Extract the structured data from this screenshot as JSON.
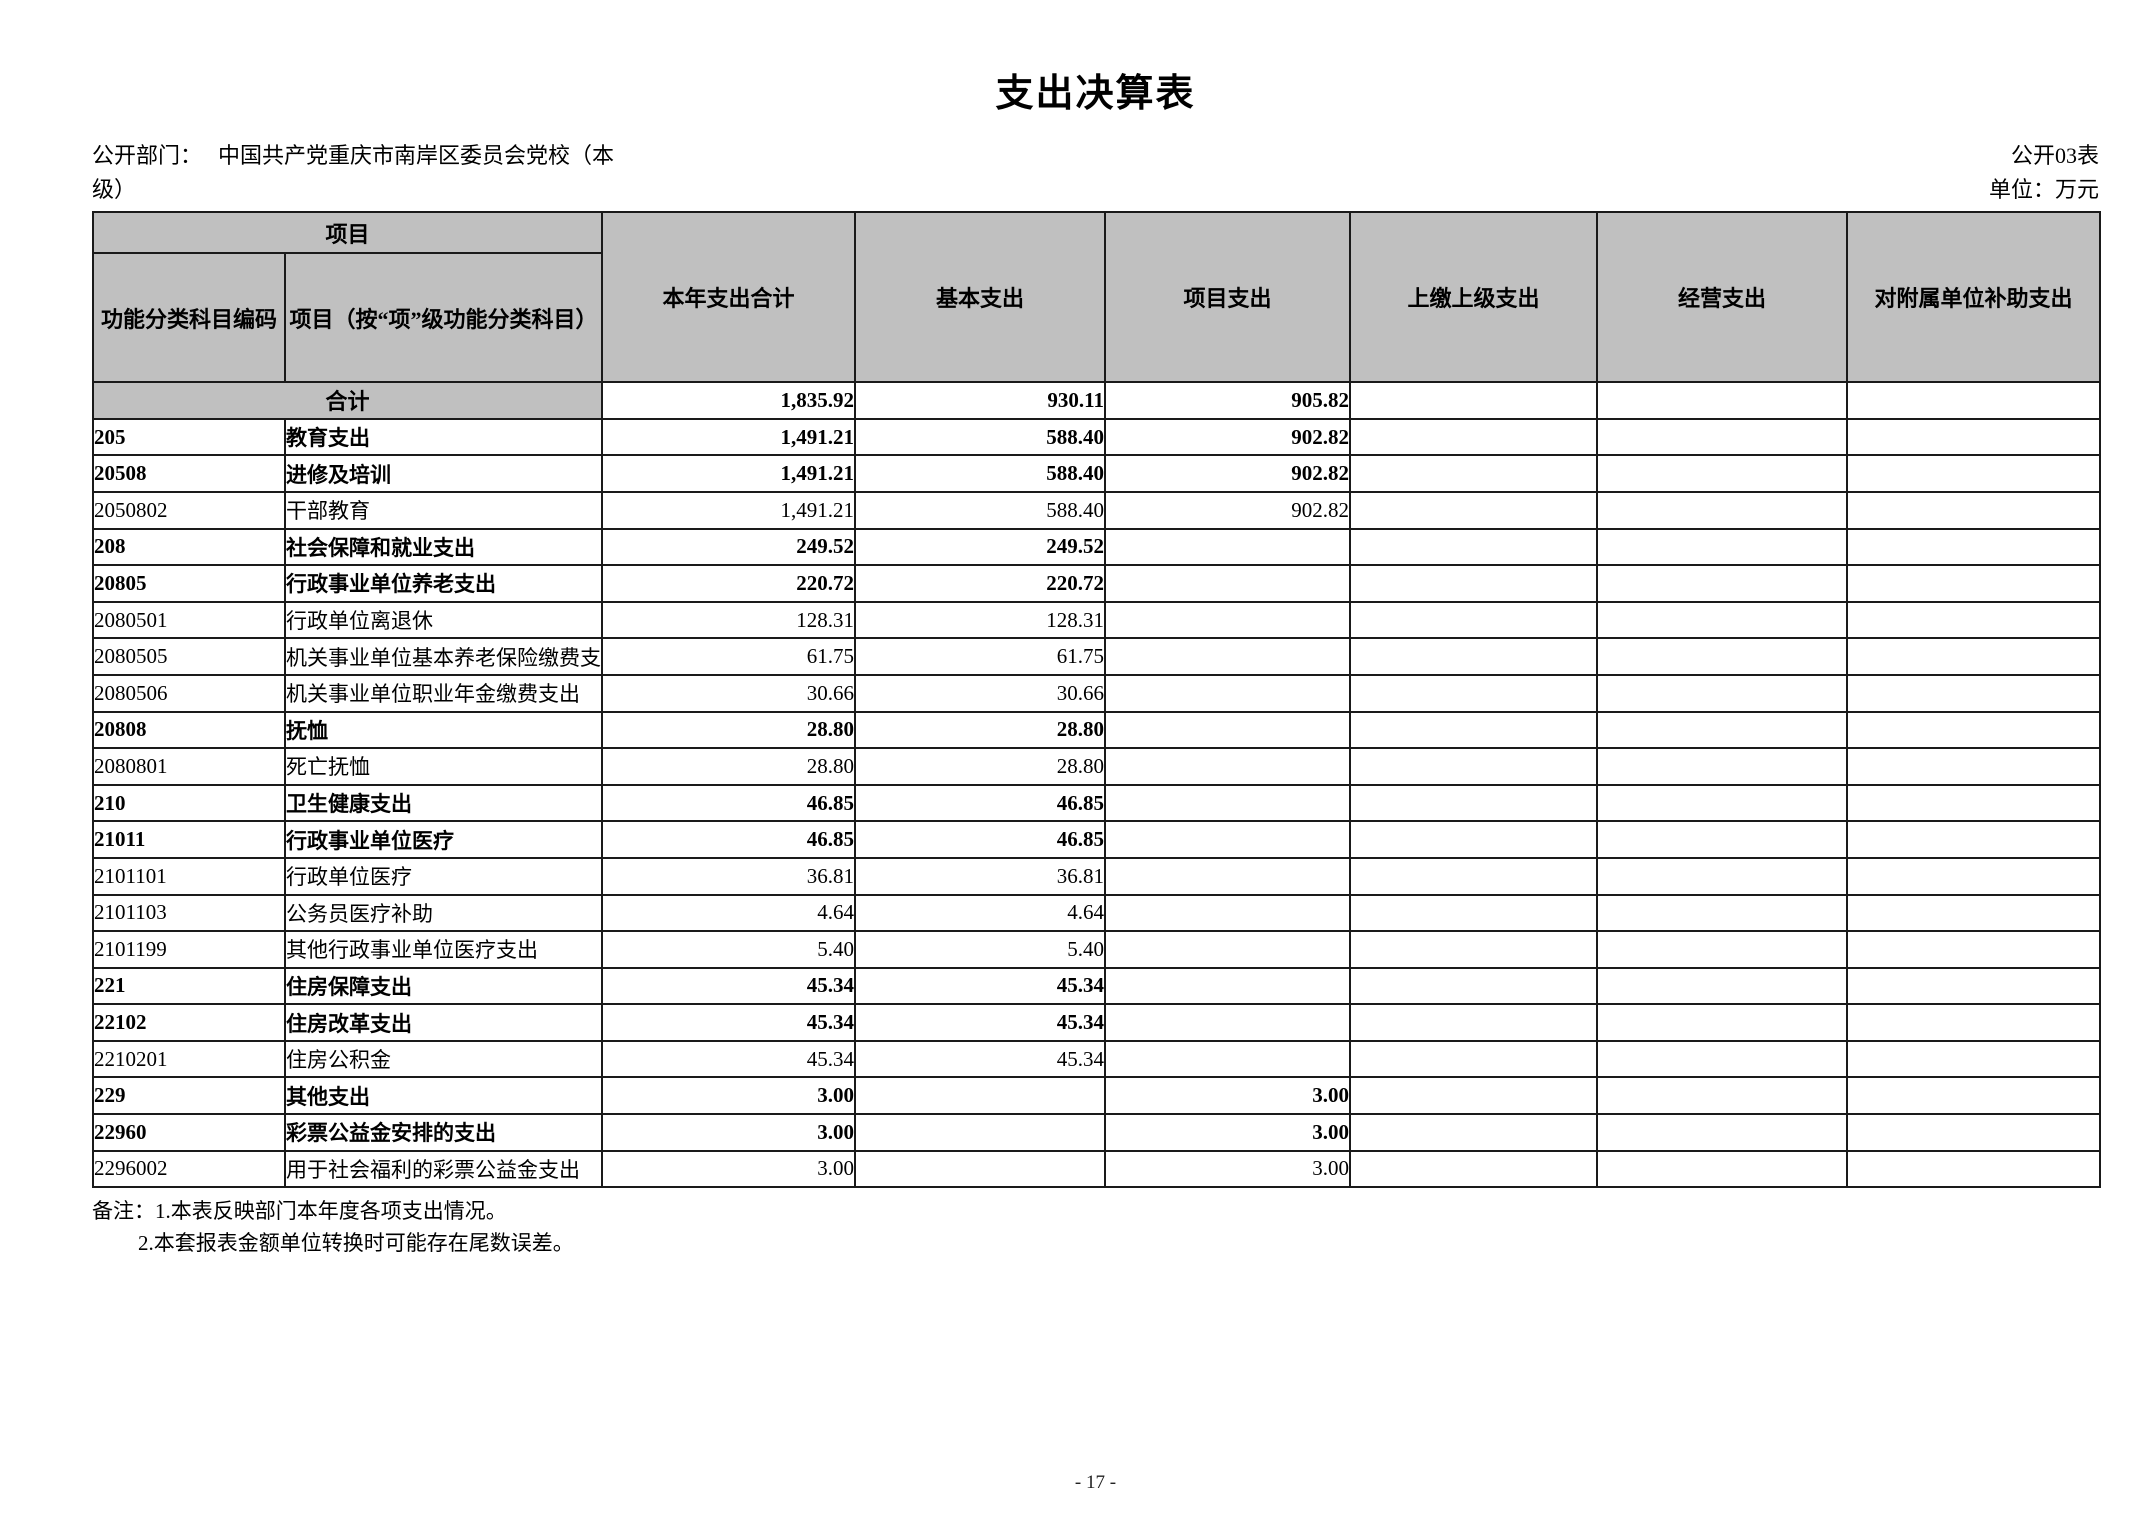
{
  "header": {
    "title": "支出决算表",
    "department_label": "公开部门：",
    "department_value": "中国共产党重庆市南岸区委员会党校（本级）",
    "table_code": "公开03表",
    "unit": "单位：万元"
  },
  "table": {
    "header": {
      "project_group": "项目",
      "code": "功能分类科目编码",
      "item": "项目（按“项”级功能分类科目）",
      "columns": [
        "本年支出合计",
        "基本支出",
        "项目支出",
        "上缴上级支出",
        "经营支出",
        "对附属单位补助支出"
      ]
    },
    "rows": [
      {
        "code": "",
        "name": "合计",
        "total": "1,835.92",
        "basic": "930.11",
        "project": "905.82",
        "upper": "",
        "operating": "",
        "subsidy": "",
        "bold": true,
        "is_total": true
      },
      {
        "code": "205",
        "name": "教育支出",
        "total": "1,491.21",
        "basic": "588.40",
        "project": "902.82",
        "upper": "",
        "operating": "",
        "subsidy": "",
        "bold": true
      },
      {
        "code": "20508",
        "name": "进修及培训",
        "total": "1,491.21",
        "basic": "588.40",
        "project": "902.82",
        "upper": "",
        "operating": "",
        "subsidy": "",
        "bold": true
      },
      {
        "code": "2050802",
        "name": "干部教育",
        "total": "1,491.21",
        "basic": "588.40",
        "project": "902.82",
        "upper": "",
        "operating": "",
        "subsidy": "",
        "bold": false
      },
      {
        "code": "208",
        "name": "社会保障和就业支出",
        "total": "249.52",
        "basic": "249.52",
        "project": "",
        "upper": "",
        "operating": "",
        "subsidy": "",
        "bold": true
      },
      {
        "code": "20805",
        "name": "行政事业单位养老支出",
        "total": "220.72",
        "basic": "220.72",
        "project": "",
        "upper": "",
        "operating": "",
        "subsidy": "",
        "bold": true
      },
      {
        "code": "2080501",
        "name": "行政单位离退休",
        "total": "128.31",
        "basic": "128.31",
        "project": "",
        "upper": "",
        "operating": "",
        "subsidy": "",
        "bold": false
      },
      {
        "code": "2080505",
        "name": "机关事业单位基本养老保险缴费支出",
        "total": "61.75",
        "basic": "61.75",
        "project": "",
        "upper": "",
        "operating": "",
        "subsidy": "",
        "bold": false
      },
      {
        "code": "2080506",
        "name": "机关事业单位职业年金缴费支出",
        "total": "30.66",
        "basic": "30.66",
        "project": "",
        "upper": "",
        "operating": "",
        "subsidy": "",
        "bold": false
      },
      {
        "code": "20808",
        "name": "抚恤",
        "total": "28.80",
        "basic": "28.80",
        "project": "",
        "upper": "",
        "operating": "",
        "subsidy": "",
        "bold": true
      },
      {
        "code": "2080801",
        "name": "死亡抚恤",
        "total": "28.80",
        "basic": "28.80",
        "project": "",
        "upper": "",
        "operating": "",
        "subsidy": "",
        "bold": false
      },
      {
        "code": "210",
        "name": "卫生健康支出",
        "total": "46.85",
        "basic": "46.85",
        "project": "",
        "upper": "",
        "operating": "",
        "subsidy": "",
        "bold": true
      },
      {
        "code": "21011",
        "name": "行政事业单位医疗",
        "total": "46.85",
        "basic": "46.85",
        "project": "",
        "upper": "",
        "operating": "",
        "subsidy": "",
        "bold": true
      },
      {
        "code": "2101101",
        "name": "行政单位医疗",
        "total": "36.81",
        "basic": "36.81",
        "project": "",
        "upper": "",
        "operating": "",
        "subsidy": "",
        "bold": false
      },
      {
        "code": "2101103",
        "name": "公务员医疗补助",
        "total": "4.64",
        "basic": "4.64",
        "project": "",
        "upper": "",
        "operating": "",
        "subsidy": "",
        "bold": false
      },
      {
        "code": "2101199",
        "name": "其他行政事业单位医疗支出",
        "total": "5.40",
        "basic": "5.40",
        "project": "",
        "upper": "",
        "operating": "",
        "subsidy": "",
        "bold": false
      },
      {
        "code": "221",
        "name": "住房保障支出",
        "total": "45.34",
        "basic": "45.34",
        "project": "",
        "upper": "",
        "operating": "",
        "subsidy": "",
        "bold": true
      },
      {
        "code": "22102",
        "name": "住房改革支出",
        "total": "45.34",
        "basic": "45.34",
        "project": "",
        "upper": "",
        "operating": "",
        "subsidy": "",
        "bold": true
      },
      {
        "code": "2210201",
        "name": "住房公积金",
        "total": "45.34",
        "basic": "45.34",
        "project": "",
        "upper": "",
        "operating": "",
        "subsidy": "",
        "bold": false
      },
      {
        "code": "229",
        "name": "其他支出",
        "total": "3.00",
        "basic": "",
        "project": "3.00",
        "upper": "",
        "operating": "",
        "subsidy": "",
        "bold": true
      },
      {
        "code": "22960",
        "name": "彩票公益金安排的支出",
        "total": "3.00",
        "basic": "",
        "project": "3.00",
        "upper": "",
        "operating": "",
        "subsidy": "",
        "bold": true
      },
      {
        "code": "2296002",
        "name": "用于社会福利的彩票公益金支出",
        "total": "3.00",
        "basic": "",
        "project": "3.00",
        "upper": "",
        "operating": "",
        "subsidy": "",
        "bold": false
      }
    ]
  },
  "notes": [
    "备注：1.本表反映部门本年度各项支出情况。",
    "2.本套报表金额单位转换时可能存在尾数误差。"
  ],
  "footer": {
    "page_number": "- 17 -"
  },
  "colors": {
    "header_bg": "#c0c0c0",
    "border": "#1a1a1a",
    "text": "#000000"
  }
}
